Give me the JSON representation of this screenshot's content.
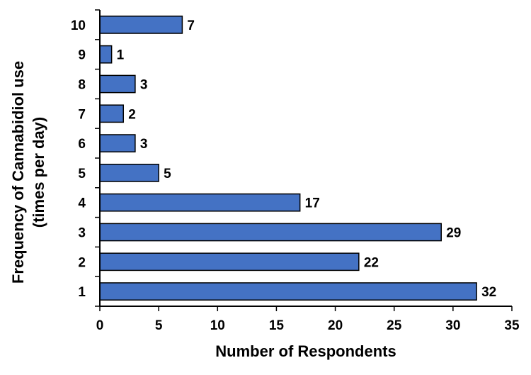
{
  "chart_data": {
    "type": "bar",
    "orientation": "horizontal",
    "categories": [
      "1",
      "2",
      "3",
      "4",
      "5",
      "6",
      "7",
      "8",
      "9",
      "10"
    ],
    "values": [
      32,
      22,
      29,
      17,
      5,
      3,
      2,
      3,
      1,
      7
    ],
    "data_labels": [
      "32",
      "22",
      "29",
      "17",
      "5",
      "3",
      "2",
      "3",
      "1",
      "7"
    ],
    "xlabel": "Number of Respondents",
    "ylabel_lines": [
      "Frequency of Cannabidiol use",
      "(times per day)"
    ],
    "xlim": [
      0,
      35
    ],
    "xticks": [
      "0",
      "5",
      "10",
      "15",
      "20",
      "25",
      "30",
      "35"
    ],
    "grid": false,
    "colors": {
      "bar_fill": "#4472C4",
      "bar_stroke": "#000000"
    }
  }
}
